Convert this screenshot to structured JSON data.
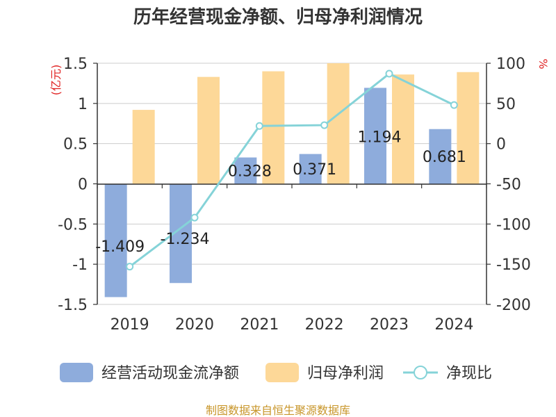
{
  "chart_data": {
    "type": "bar",
    "title": "历年经营现金净额、归母净利润情况",
    "left_axis_unit": "(亿元)",
    "right_axis_unit": "%",
    "categories": [
      "2019",
      "2020",
      "2021",
      "2022",
      "2023",
      "2024"
    ],
    "left_ylim": [
      -1.5,
      1.5
    ],
    "left_ticks": [
      "1.5",
      "1",
      "0.5",
      "0",
      "-0.5",
      "-1",
      "-1.5"
    ],
    "right_ylim": [
      -200,
      100
    ],
    "right_ticks": [
      "100",
      "50",
      "0",
      "-50",
      "-100",
      "-150",
      "-200"
    ],
    "grid": true,
    "legend_position": "bottom",
    "series": [
      {
        "name": "经营活动现金流净额",
        "type": "bar",
        "axis": "left",
        "color": "#8eacdc",
        "values": [
          -1.409,
          -1.234,
          0.328,
          0.371,
          1.194,
          0.681
        ],
        "labels": [
          "-1.409",
          "-1.234",
          "0.328",
          "0.371",
          "1.194",
          "0.681"
        ]
      },
      {
        "name": "归母净利润",
        "type": "bar",
        "axis": "left",
        "color": "#fdd898",
        "values": [
          0.92,
          1.33,
          1.4,
          1.5,
          1.36,
          1.39
        ]
      },
      {
        "name": "净现比",
        "type": "line",
        "axis": "right",
        "color": "#85d3d8",
        "values": [
          -153,
          -92,
          22,
          23,
          87,
          48
        ]
      }
    ],
    "source": "制图数据来自恒生聚源数据库"
  }
}
